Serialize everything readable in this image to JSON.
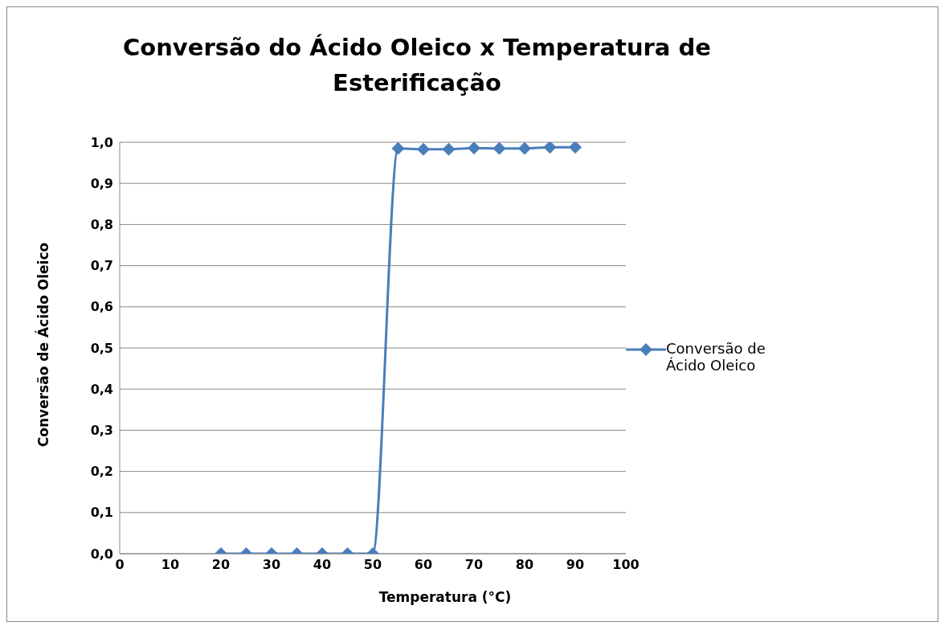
{
  "chart_data": {
    "type": "line",
    "title": "Conversão do Ácido Oleico x Temperatura de Esterificação",
    "xlabel": "Temperatura (°C)",
    "ylabel": "Conversão de Ácido Oleico",
    "x": [
      20,
      25,
      30,
      35,
      40,
      45,
      50,
      55,
      60,
      65,
      70,
      75,
      80,
      85,
      90
    ],
    "series": [
      {
        "name": "Conversão de Ácido Oleico",
        "color": "#4a7ebb",
        "values": [
          0,
          0,
          0,
          0,
          0,
          0,
          0,
          0.985,
          0.983,
          0.983,
          0.986,
          0.985,
          0.985,
          0.988,
          0.988
        ]
      }
    ],
    "xlim": [
      0,
      100
    ],
    "xticks": [
      0,
      10,
      20,
      30,
      40,
      50,
      60,
      70,
      80,
      90,
      100
    ],
    "ylim": [
      0,
      1
    ],
    "yticks": [
      {
        "value": 0,
        "label": "0,0"
      },
      {
        "value": 0.1,
        "label": "0,1"
      },
      {
        "value": 0.2,
        "label": "0,2"
      },
      {
        "value": 0.3,
        "label": "0,3"
      },
      {
        "value": 0.4,
        "label": "0,4"
      },
      {
        "value": 0.5,
        "label": "0,5"
      },
      {
        "value": 0.6,
        "label": "0,6"
      },
      {
        "value": 0.7,
        "label": "0,7"
      },
      {
        "value": 0.8,
        "label": "0,8"
      },
      {
        "value": 0.9,
        "label": "0,9"
      },
      {
        "value": 1,
        "label": "1,0"
      }
    ],
    "grid": "y",
    "legend": "right",
    "marker": "diamond"
  }
}
